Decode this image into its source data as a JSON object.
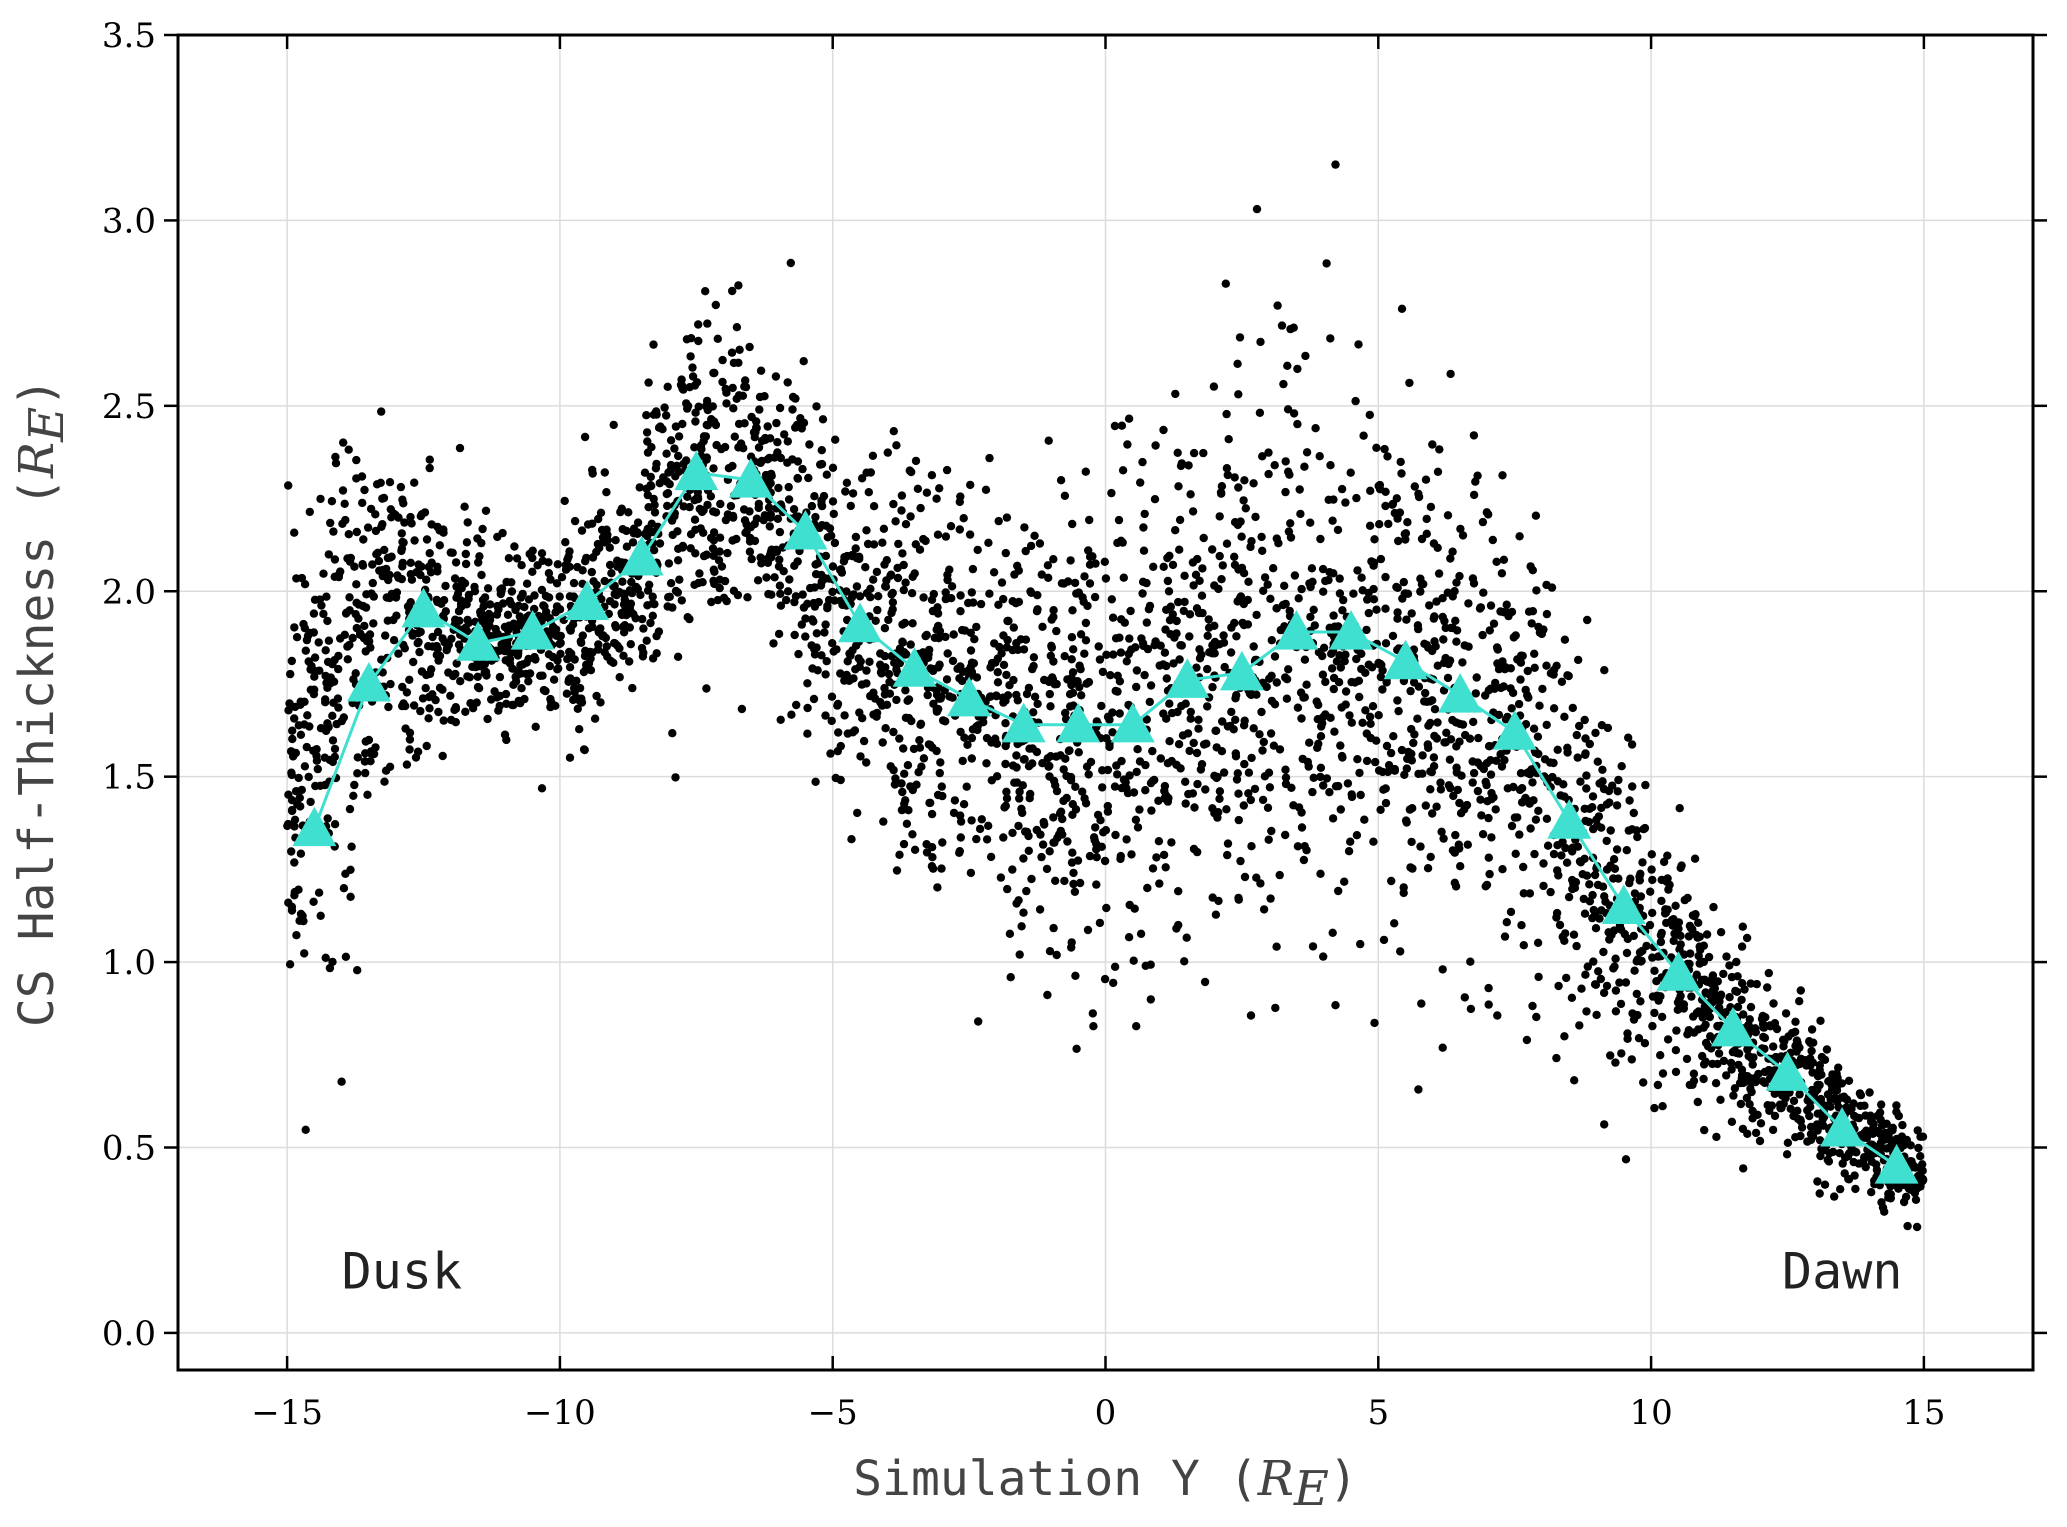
{
  "chart_data": {
    "type": "scatter",
    "title": "",
    "xlabel": "Simulation Y",
    "xlabel_unit": "R",
    "xlabel_unit_sub": "E",
    "ylabel": "CS Half-Thickness",
    "ylabel_unit": "R",
    "ylabel_unit_sub": "E",
    "xlim": [
      -17,
      17
    ],
    "ylim": [
      -0.1,
      3.5
    ],
    "xticks": [
      -15,
      -10,
      -5,
      0,
      5,
      10,
      15
    ],
    "xtick_labels": [
      "−15",
      "−10",
      "−5",
      "0",
      "5",
      "10",
      "15"
    ],
    "yticks": [
      0.0,
      0.5,
      1.0,
      1.5,
      2.0,
      2.5,
      3.0,
      3.5
    ],
    "ytick_labels": [
      "0.0",
      "0.5",
      "1.0",
      "1.5",
      "2.0",
      "2.5",
      "3.0",
      "3.5"
    ],
    "grid": true,
    "annotations": [
      {
        "text": "Dusk",
        "x": -14.0,
        "y": 0.12
      },
      {
        "text": "Dawn",
        "x": 12.4,
        "y": 0.12
      }
    ],
    "series": [
      {
        "kind": "points",
        "color": "#000000",
        "envelope": [
          {
            "x": -15.0,
            "center": 1.5,
            "spread": 0.38
          },
          {
            "x": -14.0,
            "center": 1.8,
            "spread": 0.45
          },
          {
            "x": -13.0,
            "center": 1.95,
            "spread": 0.3
          },
          {
            "x": -12.0,
            "center": 1.9,
            "spread": 0.22
          },
          {
            "x": -11.0,
            "center": 1.87,
            "spread": 0.18
          },
          {
            "x": -10.0,
            "center": 1.9,
            "spread": 0.18
          },
          {
            "x": -9.0,
            "center": 2.0,
            "spread": 0.22
          },
          {
            "x": -8.0,
            "center": 2.2,
            "spread": 0.28
          },
          {
            "x": -7.0,
            "center": 2.32,
            "spread": 0.3
          },
          {
            "x": -6.0,
            "center": 2.2,
            "spread": 0.3
          },
          {
            "x": -5.0,
            "center": 1.95,
            "spread": 0.3
          },
          {
            "x": -4.0,
            "center": 1.82,
            "spread": 0.35
          },
          {
            "x": -3.0,
            "center": 1.72,
            "spread": 0.35
          },
          {
            "x": -2.0,
            "center": 1.65,
            "spread": 0.38
          },
          {
            "x": -1.0,
            "center": 1.62,
            "spread": 0.4
          },
          {
            "x": 0.0,
            "center": 1.62,
            "spread": 0.42
          },
          {
            "x": 1.0,
            "center": 1.7,
            "spread": 0.45
          },
          {
            "x": 2.0,
            "center": 1.75,
            "spread": 0.45
          },
          {
            "x": 3.0,
            "center": 1.85,
            "spread": 0.45
          },
          {
            "x": 4.0,
            "center": 1.88,
            "spread": 0.45
          },
          {
            "x": 5.0,
            "center": 1.85,
            "spread": 0.45
          },
          {
            "x": 6.0,
            "center": 1.75,
            "spread": 0.45
          },
          {
            "x": 7.0,
            "center": 1.65,
            "spread": 0.45
          },
          {
            "x": 8.0,
            "center": 1.5,
            "spread": 0.4
          },
          {
            "x": 9.0,
            "center": 1.25,
            "spread": 0.35
          },
          {
            "x": 10.0,
            "center": 1.05,
            "spread": 0.25
          },
          {
            "x": 11.0,
            "center": 0.9,
            "spread": 0.18
          },
          {
            "x": 12.0,
            "center": 0.75,
            "spread": 0.14
          },
          {
            "x": 13.0,
            "center": 0.62,
            "spread": 0.12
          },
          {
            "x": 14.0,
            "center": 0.52,
            "spread": 0.1
          },
          {
            "x": 15.0,
            "center": 0.4,
            "spread": 0.08
          }
        ]
      },
      {
        "kind": "binned-mean",
        "color": "#40E0D0",
        "marker": "triangle",
        "x": [
          -14.5,
          -13.5,
          -12.5,
          -11.5,
          -10.5,
          -9.5,
          -8.5,
          -7.5,
          -6.5,
          -5.5,
          -4.5,
          -3.5,
          -2.5,
          -1.5,
          -0.5,
          0.5,
          1.5,
          2.5,
          3.5,
          4.5,
          5.5,
          6.5,
          7.5,
          8.5,
          9.5,
          10.5,
          11.5,
          12.5,
          13.5,
          14.5
        ],
        "y": [
          1.36,
          1.75,
          1.95,
          1.86,
          1.89,
          1.97,
          2.09,
          2.32,
          2.3,
          2.16,
          1.91,
          1.79,
          1.71,
          1.64,
          1.64,
          1.64,
          1.76,
          1.78,
          1.89,
          1.89,
          1.81,
          1.72,
          1.62,
          1.38,
          1.15,
          0.97,
          0.82,
          0.7,
          0.55,
          0.45
        ]
      }
    ]
  }
}
